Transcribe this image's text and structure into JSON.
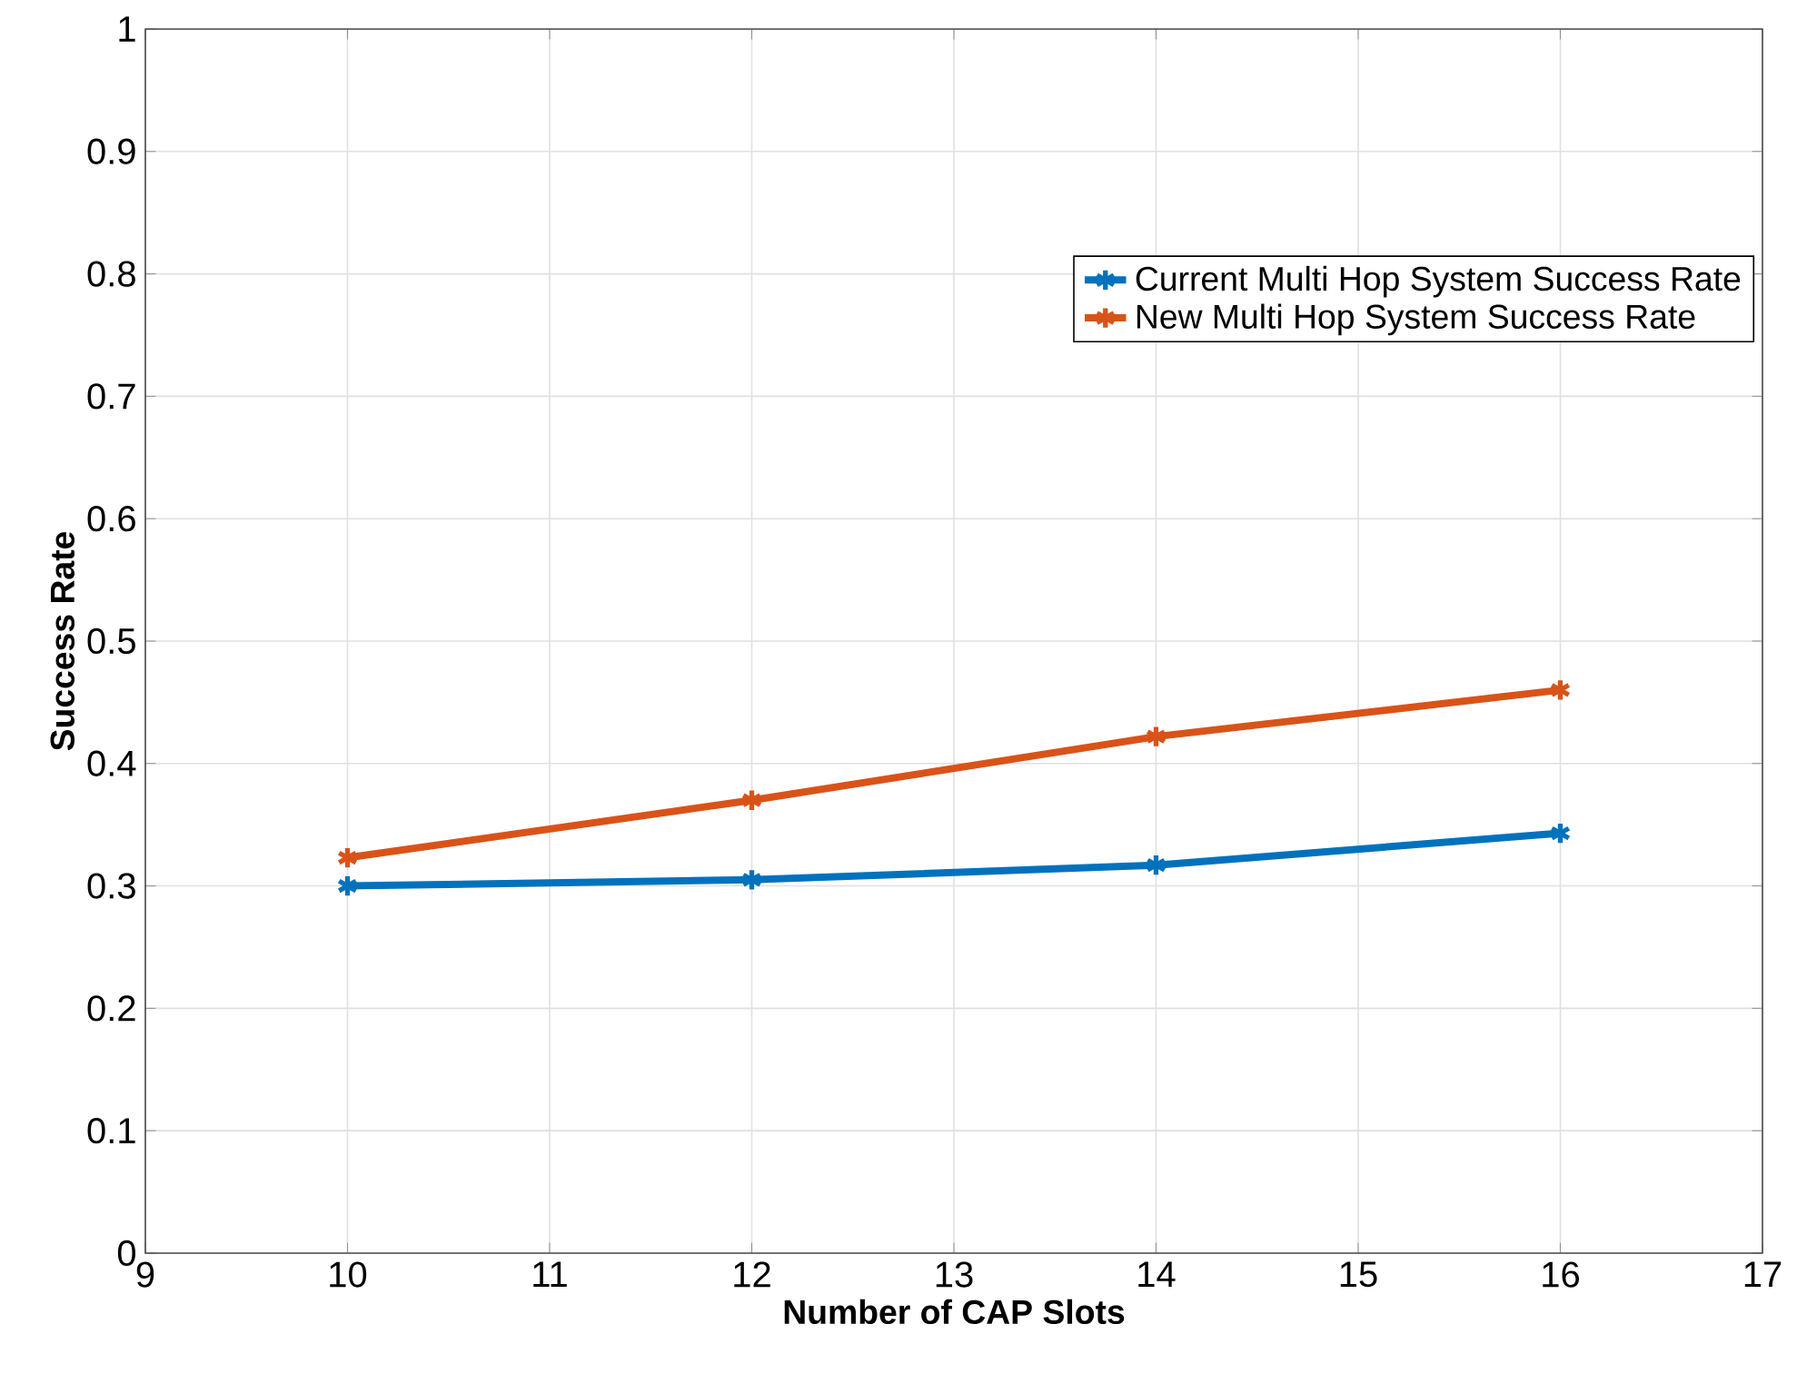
{
  "chart_data": {
    "type": "line",
    "xlabel": "Number of CAP Slots",
    "ylabel": "Success Rate",
    "x": [
      10,
      12,
      14,
      16
    ],
    "series": [
      {
        "name": "Current Multi Hop System Success Rate",
        "color": "#0072bd",
        "values": [
          0.3,
          0.305,
          0.317,
          0.343
        ]
      },
      {
        "name": "New Multi Hop System Success Rate",
        "color": "#d95319",
        "values": [
          0.323,
          0.37,
          0.422,
          0.46
        ]
      }
    ],
    "xlim": [
      9,
      17
    ],
    "xticks": [
      9,
      10,
      11,
      12,
      13,
      14,
      15,
      16,
      17
    ],
    "ylim": [
      0,
      1
    ],
    "yticks": [
      0,
      0.1,
      0.2,
      0.3,
      0.4,
      0.5,
      0.6,
      0.7,
      0.8,
      0.9,
      1
    ],
    "grid": true,
    "legend": "top right",
    "marker": "cross",
    "line_style": "solid"
  }
}
